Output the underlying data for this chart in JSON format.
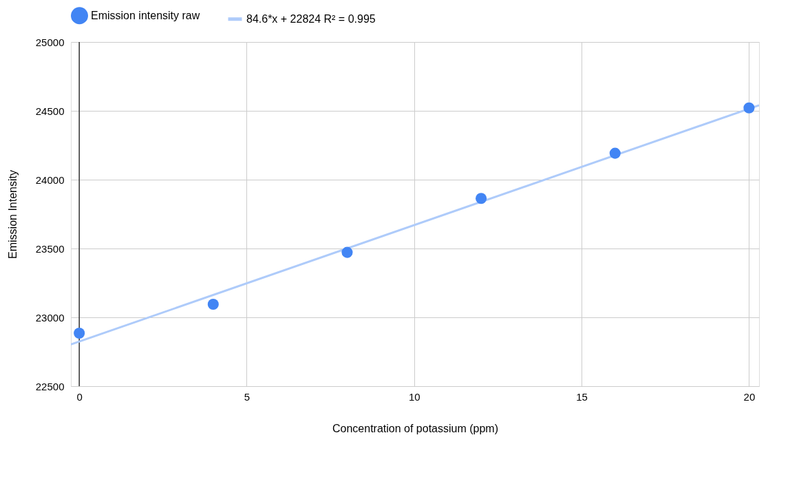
{
  "chart_data": {
    "type": "scatter",
    "xlabel": "Concentration of potassium (ppm)",
    "ylabel": "Emission Intensity",
    "x": [
      0,
      4,
      8,
      12,
      16,
      20
    ],
    "series": [
      {
        "name": "Emission intensity raw",
        "color": "#4285f4",
        "marker": "circle",
        "values": [
          22885,
          23095,
          23472,
          23864,
          24192,
          24521
        ]
      },
      {
        "name": "84.6*x + 22824 R² = 0.995",
        "type": "line",
        "color": "#aecbfa",
        "x": [
          -0.25,
          20.3
        ],
        "values": [
          22803,
          24541
        ]
      }
    ],
    "xlim": [
      -0.25,
      20.3
    ],
    "xticks": [
      0,
      5,
      10,
      15,
      20
    ],
    "ylim": [
      22500,
      25000
    ],
    "yticks": [
      22500,
      23000,
      23500,
      24000,
      24500,
      25000
    ],
    "ref_lines": [
      {
        "axis": "x",
        "value": 0,
        "color": "#333333"
      }
    ],
    "grid": true,
    "legend": "top"
  }
}
